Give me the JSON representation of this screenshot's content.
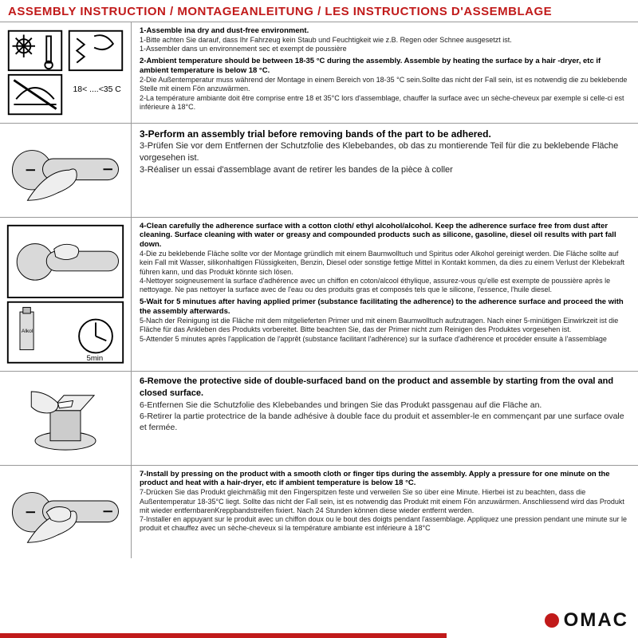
{
  "colors": {
    "title": "#c11a1a",
    "border": "#999999",
    "text": "#111111",
    "subtext": "#222222",
    "brand_red": "#c11a1a",
    "brand_black": "#111111"
  },
  "title": "ASSEMBLY INSTRUCTION / MONTAGEANLEITUNG / LES INSTRUCTIONS D'ASSEMBLAGE",
  "brand": {
    "name": "OMAC"
  },
  "redbar_width": 560,
  "rows": [
    {
      "icon": "env",
      "steps": [
        {
          "bold": "1-Assemble ina dry and dust-free environment.",
          "subs": [
            "1-Bitte achten Sie darauf, dass Ihr Fahrzeug kein Staub und Feuchtigkeit wie z.B. Regen oder Schnee ausgesetzt ist.",
            "1-Assembler dans un environnement sec et exempt de poussière"
          ]
        },
        {
          "bold": "2-Ambient temperature should be between 18-35 °C  during the assembly. Assemble by heating the surface by a hair -dryer, etc if ambient temperature is below 18 °C.",
          "subs": [
            "2-Die Außentemperatur muss während der Montage in einem Bereich von 18-35 °C  sein.Sollte das nicht der Fall sein, ist es notwendig die zu beklebende Stelle mit einem Fön anzuwärmen.",
            "2-La température ambiante doit être comprise entre 18 et 35°C lors d'assemblage, chauffer la surface avec un sèche-cheveux par exemple si celle-ci est inférieure à 18°C."
          ]
        }
      ]
    },
    {
      "icon": "trial",
      "class": "row3",
      "steps": [
        {
          "bold": "3-Perform an assembly trial before removing bands of the part to be adhered.",
          "subs": [
            "3-Prüfen Sie vor dem Entfernen der Schutzfolie des Klebebandes, ob das zu montierende Teil für die zu beklebende Fläche vorgesehen ist.",
            "3-Réaliser un essai d'assemblage avant de retirer les bandes de la pièce à coller"
          ]
        }
      ]
    },
    {
      "icon": "clean",
      "steps": [
        {
          "bold": "4-Clean carefully the adherence surface with a cotton cloth/ ethyl alcohol/alcohol. Keep the adherence surface free from dust after cleaning. Surface cleaning with water or greasy and compounded products such as silicone, gasoline, diesel oil results with part fall down.",
          "subs": [
            "4-Die zu beklebende Fläche sollte vor der Montage gründlich mit einem Baumwolltuch und Spiritus oder Alkohol gereinigt werden. Die Fläche sollte auf kein Fall mit Wasser, silikonhaltigen Flüssigkeiten, Benzin, Diesel oder sonstige fettige Mittel in Kontakt kommen, da dies zu einem Verlust der Klebekraft führen kann, und das Produkt könnte sich lösen.",
            "4-Nettoyer soigneusement la surface d'adhérence avec un chiffon en coton/alcool éthylique, assurez-vous qu'elle est exempte de poussière après le nettoyage. Ne pas nettoyer la surface avec de l'eau ou des produits gras et composés tels que le silicone, l'essence, l'huile diesel."
          ]
        },
        {
          "bold": "5-Wait for 5 minutues after having applied primer (substance facilitating the adherence) to the adherence surface and proceed the with the assembly afterwards.",
          "subs": [
            "5-Nach der Reinigung ist die Fläche mit dem mitgelieferten Primer und mit einem Baumwolltuch aufzutragen. Nach einer 5-minütigen Einwirkzeit ist die Fläche für das Ankleben des Produkts vorbereitet. Bitte beachten Sie, das der Primer nicht zum Reinigen des Produktes vorgesehen ist.",
            "5-Attender 5 minutes après l'application de l'apprêt (substance facilitant l'adhérence) sur la surface d'adhérence et procéder ensuite à l'assemblage"
          ]
        }
      ]
    },
    {
      "icon": "peel",
      "class": "row6",
      "steps": [
        {
          "bold": "6-Remove the protective side of double-surfaced band on the product and assemble by starting from the oval and closed surface.",
          "subs": [
            "6-Entfernen Sie die Schutzfolie des Klebebandes und bringen Sie das Produkt passgenau auf die Fläche an.",
            "6-Retirer la partie protectrice de la bande adhésive à double face du produit et assembler-le en commençant par une surface ovale et fermée."
          ]
        }
      ]
    },
    {
      "icon": "press",
      "steps": [
        {
          "bold": "7-Install by pressing on the product with a smooth cloth or finger tips during the assembly. Apply a pressure for one minute on the product and heat with a hair-dryer, etc if ambient temperature is below 18 °C.",
          "subs": [
            "7-Drücken Sie das Produkt gleichmäßig mit den Fingerspitzen feste und verweilen Sie so über eine Minute. Hierbei ist zu beachten, dass die Außentemperatur 18-35°C liegt. Sollte das nicht der Fall sein, ist es notwendig das Produkt mit einem Fön anzuwärmen. Anschliessend wird das Produkt mit wieder entfernbarenKreppbandstreifen fixiert. Nach 24 Stunden können diese wieder entfernt werden.",
            "7-Installer en appuyant sur le produit avec un chiffon doux ou le bout des doigts pendant l'assemblage. Appliquez une pression pendant une minute sur le produit et chauffez avec un sèche-cheveux si la température ambiante est inférieure à 18°C"
          ]
        }
      ]
    }
  ]
}
